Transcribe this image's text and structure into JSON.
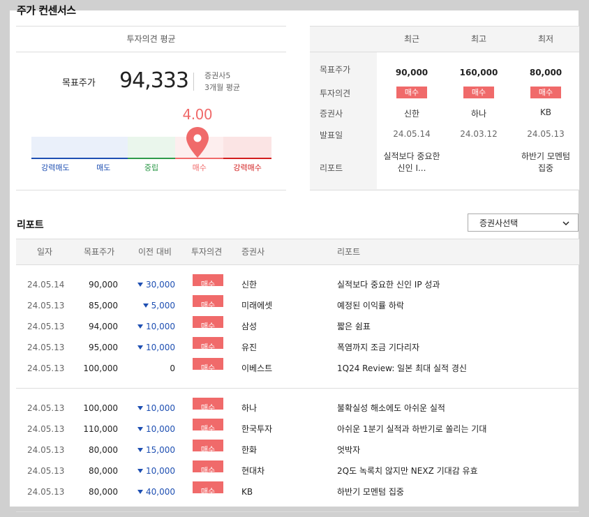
{
  "section_title": "주가 컨센서스",
  "opinion_header": "투자의견 평균",
  "target": {
    "label": "목표주가",
    "price": "94,333",
    "brokers": "증권사5",
    "period": "3개월 평균",
    "score": "4.00",
    "score_value": 4.0
  },
  "scale": [
    {
      "label": "강력매도",
      "color": "#1e4fb2",
      "bg": "#eaf0fa"
    },
    {
      "label": "매도",
      "color": "#1e4fb2",
      "bg": "#eaf0fa"
    },
    {
      "label": "중립",
      "color": "#2e9a4a",
      "bg": "#eaf6ec"
    },
    {
      "label": "매수",
      "color": "#f06a6a",
      "bg": "#fdeeee"
    },
    {
      "label": "강력매수",
      "color": "#d21e1e",
      "bg": "#fbe4e4"
    }
  ],
  "summary": {
    "columns": [
      "최근",
      "최고",
      "최저"
    ],
    "row_labels": {
      "price": "목표주가",
      "opinion": "투자의견",
      "broker": "증권사",
      "date": "발표일",
      "report": "리포트"
    },
    "rows": [
      {
        "price": "90,000",
        "opinion": "매수",
        "broker": "신한",
        "date": "24.05.14",
        "report": "실적보다 중요한 신인 I..."
      },
      {
        "price": "160,000",
        "opinion": "매수",
        "broker": "하나",
        "date": "24.03.12",
        "report": ""
      },
      {
        "price": "80,000",
        "opinion": "매수",
        "broker": "KB",
        "date": "24.05.13",
        "report": "하반기 모멘텀 집중"
      }
    ]
  },
  "reports_title": "리포트",
  "broker_select": "증권사선택",
  "report_headers": [
    "일자",
    "목표주가",
    "이전 대비",
    "투자의견",
    "증권사",
    "리포트"
  ],
  "reports": [
    {
      "date": "24.05.14",
      "price": "90,000",
      "diff": "30,000",
      "down": true,
      "opinion": "매수",
      "broker": "신한",
      "title": "실적보다 중요한 신인 IP 성과"
    },
    {
      "date": "24.05.13",
      "price": "85,000",
      "diff": "5,000",
      "down": true,
      "opinion": "매수",
      "broker": "미래에셋",
      "title": "예정된 이익률 하락"
    },
    {
      "date": "24.05.13",
      "price": "94,000",
      "diff": "10,000",
      "down": true,
      "opinion": "매수",
      "broker": "삼성",
      "title": "짧은 쉼표"
    },
    {
      "date": "24.05.13",
      "price": "95,000",
      "diff": "10,000",
      "down": true,
      "opinion": "매수",
      "broker": "유진",
      "title": "폭염까지 조금 기다리자"
    },
    {
      "date": "24.05.13",
      "price": "100,000",
      "diff": "0",
      "down": false,
      "opinion": "매수",
      "broker": "이베스트",
      "title": "1Q24 Review: 일본 최대 실적 경신"
    },
    {
      "date": "24.05.13",
      "price": "100,000",
      "diff": "10,000",
      "down": true,
      "opinion": "매수",
      "broker": "하나",
      "title": "불확실성 해소에도 아쉬운 실적"
    },
    {
      "date": "24.05.13",
      "price": "110,000",
      "diff": "10,000",
      "down": true,
      "opinion": "매수",
      "broker": "한국투자",
      "title": "아쉬운 1분기 실적과 하반기로 쏠리는 기대"
    },
    {
      "date": "24.05.13",
      "price": "80,000",
      "diff": "15,000",
      "down": true,
      "opinion": "매수",
      "broker": "한화",
      "title": "엇박자"
    },
    {
      "date": "24.05.13",
      "price": "80,000",
      "diff": "10,000",
      "down": true,
      "opinion": "매수",
      "broker": "현대차",
      "title": "2Q도 녹록치 않지만 NEXZ 기대감 유효"
    },
    {
      "date": "24.05.13",
      "price": "80,000",
      "diff": "40,000",
      "down": true,
      "opinion": "매수",
      "broker": "KB",
      "title": "하반기 모멘텀 집중"
    }
  ]
}
